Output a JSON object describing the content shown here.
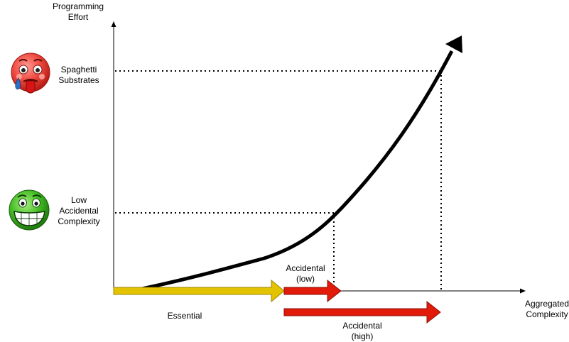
{
  "axes": {
    "y_label": "Programming\nEffort",
    "x_label": "Aggregated\nComplexity"
  },
  "levels": {
    "high": {
      "label": "Spaghetti\nSubstrates",
      "icon": "sick-face-icon",
      "color": "#e8332d"
    },
    "low": {
      "label": "Low\nAccidental\nComplexity",
      "icon": "grinning-face-icon",
      "color": "#36b021"
    }
  },
  "arrows": {
    "essential": {
      "label": "Essential",
      "color": "#e3c300"
    },
    "accidental_low": {
      "label": "Accidental\n(low)",
      "color": "#e11a0a"
    },
    "accidental_high": {
      "label": "Accidental\n(high)",
      "color": "#e11a0a"
    }
  },
  "curve": {
    "color": "#000000"
  }
}
